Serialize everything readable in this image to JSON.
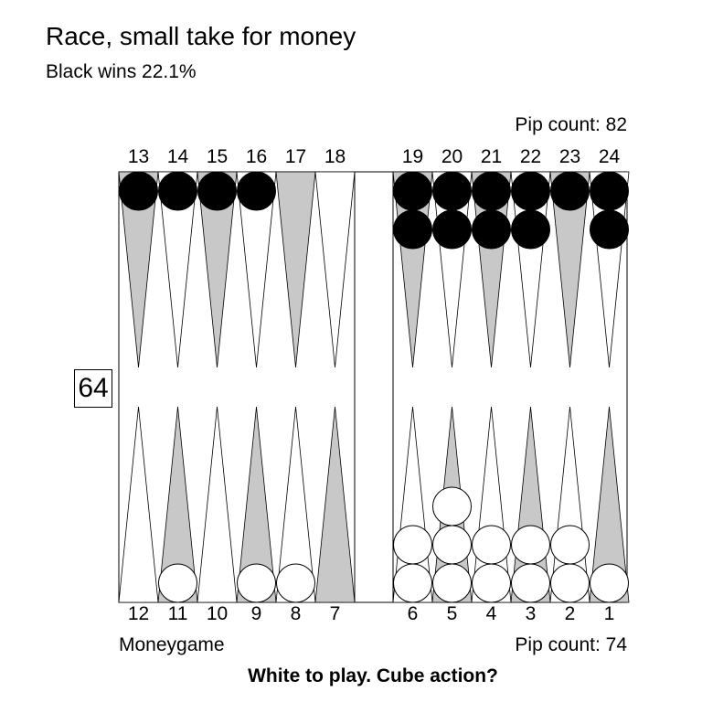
{
  "title": "Race, small take for money",
  "subtitle": "Black wins 22.1%",
  "pip_count_top": "Pip count: 82",
  "pip_count_bottom": "Pip count: 74",
  "match_type": "Moneygame",
  "prompt": "White to play. Cube action?",
  "cube_value": "64",
  "colors": {
    "dark_point": "#c8c8c8",
    "light_point": "#ffffff",
    "black_checker": "#000000",
    "white_checker": "#ffffff"
  },
  "top_labels": [
    "13",
    "14",
    "15",
    "16",
    "17",
    "18",
    "19",
    "20",
    "21",
    "22",
    "23",
    "24"
  ],
  "bottom_labels": [
    "12",
    "11",
    "10",
    "9",
    "8",
    "7",
    "6",
    "5",
    "4",
    "3",
    "2",
    "1"
  ],
  "black_checkers": {
    "13": 1,
    "14": 1,
    "15": 1,
    "16": 1,
    "19": 2,
    "20": 2,
    "21": 2,
    "22": 2,
    "23": 1,
    "24": 2
  },
  "white_checkers": {
    "1": 1,
    "2": 2,
    "3": 2,
    "4": 2,
    "5": 3,
    "6": 2,
    "8": 1,
    "9": 1,
    "11": 1
  }
}
